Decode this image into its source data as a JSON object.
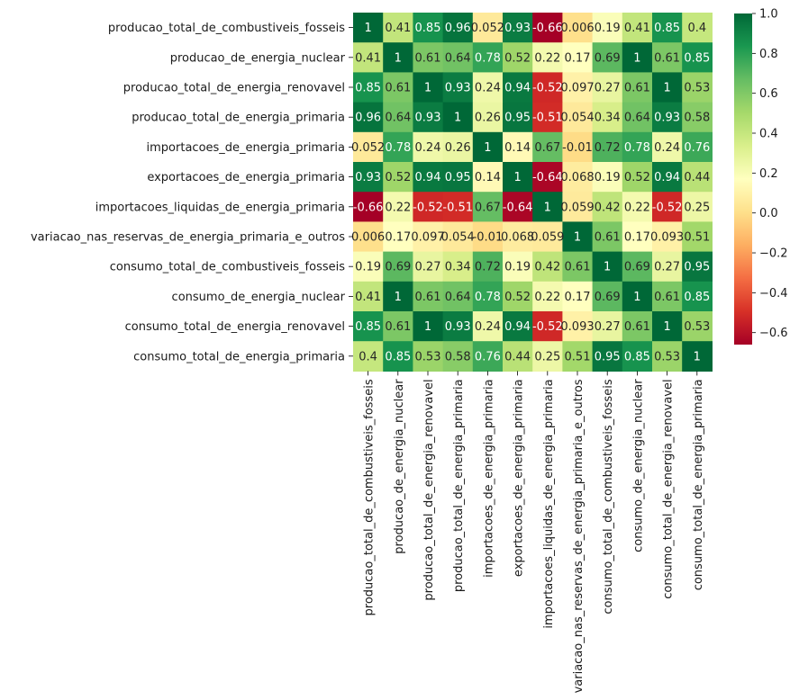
{
  "chart_data": {
    "type": "heatmap",
    "title": "",
    "xlabel": "",
    "ylabel": "",
    "labels": [
      "producao_total_de_combustiveis_fosseis",
      "producao_de_energia_nuclear",
      "producao_total_de_energia_renovavel",
      "producao_total_de_energia_primaria",
      "importacoes_de_energia_primaria",
      "exportacoes_de_energia_primaria",
      "importacoes_liquidas_de_energia_primaria",
      "variacao_nas_reservas_de_energia_primaria_e_outros",
      "consumo_total_de_combustiveis_fosseis",
      "consumo_de_energia_nuclear",
      "consumo_total_de_energia_renovavel",
      "consumo_total_de_energia_primaria"
    ],
    "matrix": [
      [
        "1",
        "0.41",
        "0.85",
        "0.96",
        "0.052",
        "0.93",
        "-0.66",
        "0.006",
        "0.19",
        "0.41",
        "0.85",
        "0.4"
      ],
      [
        "0.41",
        "1",
        "0.61",
        "0.64",
        "0.78",
        "0.52",
        "0.22",
        "0.17",
        "0.69",
        "1",
        "0.61",
        "0.85"
      ],
      [
        "0.85",
        "0.61",
        "1",
        "0.93",
        "0.24",
        "0.94",
        "-0.52",
        "0.097",
        "0.27",
        "0.61",
        "1",
        "0.53"
      ],
      [
        "0.96",
        "0.64",
        "0.93",
        "1",
        "0.26",
        "0.95",
        "-0.51",
        "0.054",
        "0.34",
        "0.64",
        "0.93",
        "0.58"
      ],
      [
        "0.052",
        "0.78",
        "0.24",
        "0.26",
        "1",
        "0.14",
        "0.67",
        "-0.01",
        "0.72",
        "0.78",
        "0.24",
        "0.76"
      ],
      [
        "0.93",
        "0.52",
        "0.94",
        "0.95",
        "0.14",
        "1",
        "-0.64",
        "0.068",
        "0.19",
        "0.52",
        "0.94",
        "0.44"
      ],
      [
        "-0.66",
        "0.22",
        "-0.52",
        "-0.51",
        "0.67",
        "-0.64",
        "1",
        "0.059",
        "0.42",
        "0.22",
        "-0.52",
        "0.25"
      ],
      [
        "0.006",
        "0.17",
        "0.097",
        "0.054",
        "-0.01",
        "0.068",
        "0.059",
        "1",
        "0.61",
        "0.17",
        "0.093",
        "0.51"
      ],
      [
        "0.19",
        "0.69",
        "0.27",
        "0.34",
        "0.72",
        "0.19",
        "0.42",
        "0.61",
        "1",
        "0.69",
        "0.27",
        "0.95"
      ],
      [
        "0.41",
        "1",
        "0.61",
        "0.64",
        "0.78",
        "0.52",
        "0.22",
        "0.17",
        "0.69",
        "1",
        "0.61",
        "0.85"
      ],
      [
        "0.85",
        "0.61",
        "1",
        "0.93",
        "0.24",
        "0.94",
        "-0.52",
        "0.093",
        "0.27",
        "0.61",
        "1",
        "0.53"
      ],
      [
        "0.4",
        "0.85",
        "0.53",
        "0.58",
        "0.76",
        "0.44",
        "0.25",
        "0.51",
        "0.95",
        "0.85",
        "0.53",
        "1"
      ]
    ],
    "colorscale": {
      "name": "RdYlGn",
      "vmin": -0.66,
      "vmax": 1.0,
      "ticks": [
        "1.0",
        "0.8",
        "0.6",
        "0.4",
        "0.2",
        "0.0",
        "−0.2",
        "−0.4",
        "−0.6"
      ],
      "tick_values": [
        1.0,
        0.8,
        0.6,
        0.4,
        0.2,
        0.0,
        -0.2,
        -0.4,
        -0.6
      ]
    },
    "annotations": true,
    "grid": false,
    "legend": "colorbar-right"
  }
}
